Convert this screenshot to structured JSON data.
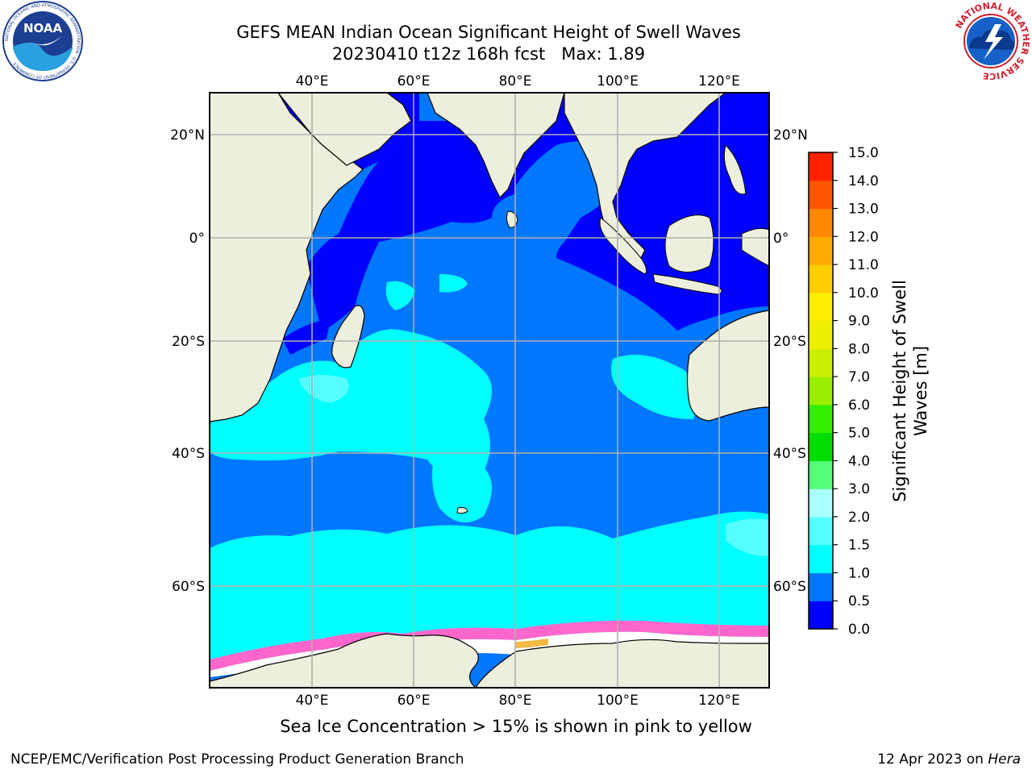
{
  "header": {
    "title_line1": "GEFS MEAN Indian Ocean Significant Height of Swell Waves",
    "title_line2": "20230410 t12z 168h fcst   Max: 1.89"
  },
  "logos": {
    "left": {
      "icon": "noaa-logo",
      "text": "NOAA",
      "ring_text": "NATIONAL OCEANIC AND ATMOSPHERIC ADMINISTRATION · U.S. DEPARTMENT OF COMMERCE"
    },
    "right": {
      "icon": "nws-logo",
      "ring_text": "NATIONAL WEATHER SERVICE"
    }
  },
  "map": {
    "top_lon_labels": [
      "40°E",
      "60°E",
      "80°E",
      "100°E",
      "120°E"
    ],
    "bottom_lon_labels": [
      "40°E",
      "60°E",
      "80°E",
      "100°E",
      "120°E"
    ],
    "left_lat_labels": [
      "20°N",
      "0°",
      "20°S",
      "40°S",
      "60°S"
    ],
    "right_lat_labels": [
      "20°N",
      "0°",
      "20°S",
      "40°S",
      "60°S"
    ],
    "colors": {
      "land": "#eeeedd",
      "grid": "#b0b0b0",
      "sea_ice_pink": "#ff66cc",
      "sea_ice_white": "#ffffff",
      "sea_ice_orange": "#f5b942"
    }
  },
  "colorbar": {
    "title_line1": "Significant Height of Swell",
    "title_line2": "Waves [m]",
    "tick_labels": [
      "0.0",
      "0.5",
      "1.0",
      "1.5",
      "2.0",
      "3.0",
      "4.0",
      "5.0",
      "6.0",
      "7.0",
      "8.0",
      "9.0",
      "10.0",
      "11.0",
      "12.0",
      "13.0",
      "14.0",
      "15.0"
    ],
    "bin_colors": [
      "#0000ff",
      "#0077ff",
      "#00ffff",
      "#55ffff",
      "#aaffff",
      "#55ff77",
      "#00dd00",
      "#33ee00",
      "#99ee00",
      "#ccee00",
      "#eeee00",
      "#ffee00",
      "#ffcc00",
      "#ffaa00",
      "#ff8800",
      "#ff5500",
      "#ff2200"
    ]
  },
  "subtitle": "Sea Ice Concentration > 15% is shown in pink to yellow",
  "footer": {
    "left": "NCEP/EMC/Verification Post Processing Product Generation Branch",
    "right_prefix": "12 Apr 2023 on ",
    "right_machine": "Hera"
  }
}
